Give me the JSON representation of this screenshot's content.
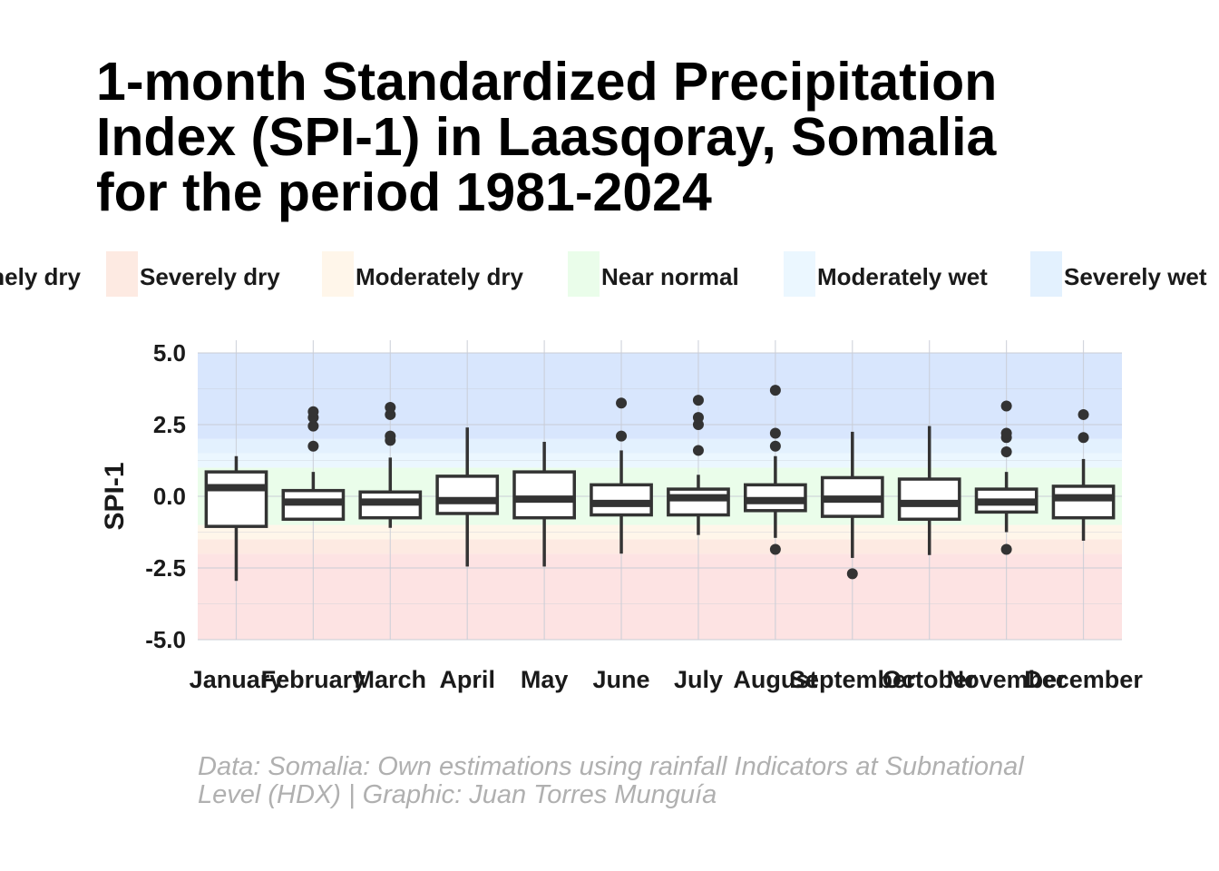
{
  "title_lines": [
    "1-month Standardized Precipitation",
    "Index (SPI-1) in Laasqoray, Somalia",
    "for the period 1981-2024"
  ],
  "caption_lines": [
    "Data: Somalia: Own estimations using rainfall Indicators at Subnational",
    "Level (HDX) | Graphic: Juan Torres Munguía"
  ],
  "legend": [
    {
      "label": "Extremely dry",
      "color": "#fde3e3"
    },
    {
      "label": "Severely dry",
      "color": "#fdeae2"
    },
    {
      "label": "Moderately dry",
      "color": "#fff6ea"
    },
    {
      "label": "Near normal",
      "color": "#eafdea"
    },
    {
      "label": "Moderately wet",
      "color": "#ebf7ff"
    },
    {
      "label": "Severely wet",
      "color": "#e3f1fe"
    }
  ],
  "chart_data": {
    "type": "boxplot",
    "ylabel": "SPI-1",
    "xlabel": "",
    "ylim": [
      -5.0,
      5.0
    ],
    "yticks": [
      "5.0",
      "2.5",
      "0.0",
      "-2.5",
      "-5.0"
    ],
    "bands": [
      {
        "from": -5.0,
        "to": -2.0,
        "color": "#fde3e3"
      },
      {
        "from": -2.0,
        "to": -1.5,
        "color": "#fdeae2"
      },
      {
        "from": -1.5,
        "to": -1.0,
        "color": "#fff6ea"
      },
      {
        "from": -1.0,
        "to": 1.0,
        "color": "#eafdea"
      },
      {
        "from": 1.0,
        "to": 1.5,
        "color": "#ebf7ff"
      },
      {
        "from": 1.5,
        "to": 2.0,
        "color": "#e3f1fe"
      },
      {
        "from": 2.0,
        "to": 5.0,
        "color": "#d8e6fd"
      }
    ],
    "categories": [
      "January",
      "February",
      "March",
      "April",
      "May",
      "June",
      "July",
      "August",
      "September",
      "October",
      "November",
      "December"
    ],
    "boxes": [
      {
        "min": -2.95,
        "q1": -1.05,
        "median": 0.3,
        "q3": 0.85,
        "max": 1.4,
        "outliers": []
      },
      {
        "min": -0.8,
        "q1": -0.8,
        "median": -0.2,
        "q3": 0.2,
        "max": 0.85,
        "outliers": [
          1.75,
          2.45,
          2.75,
          2.95
        ]
      },
      {
        "min": -1.1,
        "q1": -0.75,
        "median": -0.2,
        "q3": 0.15,
        "max": 1.35,
        "outliers": [
          1.95,
          2.1,
          2.85,
          3.1
        ]
      },
      {
        "min": -2.45,
        "q1": -0.6,
        "median": -0.15,
        "q3": 0.7,
        "max": 2.4,
        "outliers": []
      },
      {
        "min": -2.45,
        "q1": -0.75,
        "median": -0.1,
        "q3": 0.85,
        "max": 1.9,
        "outliers": []
      },
      {
        "min": -2.0,
        "q1": -0.65,
        "median": -0.25,
        "q3": 0.4,
        "max": 1.6,
        "outliers": [
          2.1,
          3.25
        ]
      },
      {
        "min": -1.35,
        "q1": -0.65,
        "median": -0.05,
        "q3": 0.25,
        "max": 0.75,
        "outliers": [
          1.6,
          2.5,
          2.75,
          3.35
        ]
      },
      {
        "min": -1.45,
        "q1": -0.5,
        "median": -0.15,
        "q3": 0.4,
        "max": 1.4,
        "outliers": [
          -1.85,
          1.75,
          2.2,
          3.7
        ]
      },
      {
        "min": -2.15,
        "q1": -0.7,
        "median": -0.1,
        "q3": 0.65,
        "max": 2.25,
        "outliers": [
          -2.7
        ]
      },
      {
        "min": -2.05,
        "q1": -0.8,
        "median": -0.25,
        "q3": 0.6,
        "max": 2.45,
        "outliers": []
      },
      {
        "min": -1.25,
        "q1": -0.55,
        "median": -0.2,
        "q3": 0.25,
        "max": 0.85,
        "outliers": [
          -1.85,
          1.55,
          2.05,
          2.2,
          3.15
        ]
      },
      {
        "min": -1.55,
        "q1": -0.75,
        "median": -0.05,
        "q3": 0.35,
        "max": 1.3,
        "outliers": [
          2.05,
          2.85
        ]
      }
    ]
  }
}
